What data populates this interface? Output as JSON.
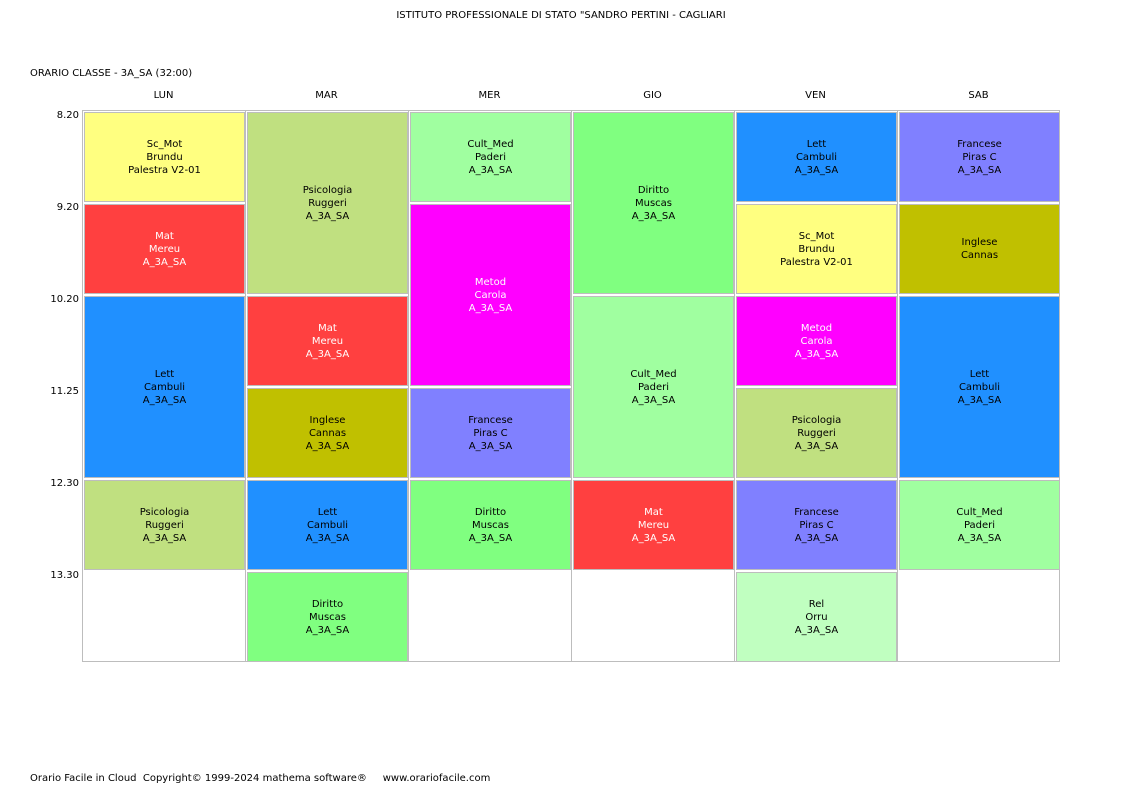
{
  "header": {
    "title": "ISTITUTO PROFESSIONALE DI STATO \"SANDRO PERTINI - CAGLIARI",
    "subtitle": "ORARIO CLASSE   -   3A_SA  (32:00)"
  },
  "days": [
    "LUN",
    "MAR",
    "MER",
    "GIO",
    "VEN",
    "SAB"
  ],
  "times": [
    "8.20",
    "9.20",
    "10.20",
    "11.25",
    "12.30",
    "13.30"
  ],
  "colors": {
    "yellow": "#ffff80",
    "red": "#ff4040",
    "blue": "#2090ff",
    "olive_light": "#c0e080",
    "mint": "#a0ffa0",
    "magenta": "#ff00ff",
    "purple": "#8080ff",
    "green": "#80ff80",
    "olive": "#c0c000",
    "pale_green": "#c0ffc0",
    "grid_line": "#bdbdbd"
  },
  "cells": [
    {
      "day": 0,
      "start": 0,
      "span": 1,
      "color": "#ffff80",
      "text_color": "#000000",
      "lines": [
        "Sc_Mot",
        "Brundu",
        "Palestra V2-01"
      ]
    },
    {
      "day": 0,
      "start": 1,
      "span": 1,
      "color": "#ff4040",
      "text_color": "#ffffff",
      "lines": [
        "Mat",
        "Mereu",
        "A_3A_SA"
      ]
    },
    {
      "day": 0,
      "start": 2,
      "span": 2,
      "color": "#2090ff",
      "text_color": "#000000",
      "lines": [
        "Lett",
        "Cambuli",
        "A_3A_SA"
      ]
    },
    {
      "day": 0,
      "start": 4,
      "span": 1,
      "color": "#c0e080",
      "text_color": "#000000",
      "lines": [
        "Psicologia",
        "Ruggeri",
        "A_3A_SA"
      ]
    },
    {
      "day": 1,
      "start": 0,
      "span": 2,
      "color": "#c0e080",
      "text_color": "#000000",
      "lines": [
        "Psicologia",
        "Ruggeri",
        "A_3A_SA"
      ]
    },
    {
      "day": 1,
      "start": 2,
      "span": 1,
      "color": "#ff4040",
      "text_color": "#ffffff",
      "lines": [
        "Mat",
        "Mereu",
        "A_3A_SA"
      ]
    },
    {
      "day": 1,
      "start": 3,
      "span": 1,
      "color": "#c0c000",
      "text_color": "#000000",
      "lines": [
        "Inglese",
        "Cannas",
        "A_3A_SA"
      ]
    },
    {
      "day": 1,
      "start": 4,
      "span": 1,
      "color": "#2090ff",
      "text_color": "#000000",
      "lines": [
        "Lett",
        "Cambuli",
        "A_3A_SA"
      ]
    },
    {
      "day": 1,
      "start": 5,
      "span": 1,
      "color": "#80ff80",
      "text_color": "#000000",
      "lines": [
        "Diritto",
        "Muscas",
        "A_3A_SA"
      ]
    },
    {
      "day": 2,
      "start": 0,
      "span": 1,
      "color": "#a0ffa0",
      "text_color": "#000000",
      "lines": [
        "Cult_Med",
        "Paderi",
        "A_3A_SA"
      ]
    },
    {
      "day": 2,
      "start": 1,
      "span": 2,
      "color": "#ff00ff",
      "text_color": "#ffffff",
      "lines": [
        "Metod",
        "Carola",
        "A_3A_SA"
      ]
    },
    {
      "day": 2,
      "start": 3,
      "span": 1,
      "color": "#8080ff",
      "text_color": "#000000",
      "lines": [
        "Francese",
        "Piras C",
        "A_3A_SA"
      ]
    },
    {
      "day": 2,
      "start": 4,
      "span": 1,
      "color": "#80ff80",
      "text_color": "#000000",
      "lines": [
        "Diritto",
        "Muscas",
        "A_3A_SA"
      ]
    },
    {
      "day": 3,
      "start": 0,
      "span": 2,
      "color": "#80ff80",
      "text_color": "#000000",
      "lines": [
        "Diritto",
        "Muscas",
        "A_3A_SA"
      ]
    },
    {
      "day": 3,
      "start": 2,
      "span": 2,
      "color": "#a0ffa0",
      "text_color": "#000000",
      "lines": [
        "Cult_Med",
        "Paderi",
        "A_3A_SA"
      ]
    },
    {
      "day": 3,
      "start": 4,
      "span": 1,
      "color": "#ff4040",
      "text_color": "#ffffff",
      "lines": [
        "Mat",
        "Mereu",
        "A_3A_SA"
      ]
    },
    {
      "day": 4,
      "start": 0,
      "span": 1,
      "color": "#2090ff",
      "text_color": "#000000",
      "lines": [
        "Lett",
        "Cambuli",
        "A_3A_SA"
      ]
    },
    {
      "day": 4,
      "start": 1,
      "span": 1,
      "color": "#ffff80",
      "text_color": "#000000",
      "lines": [
        "Sc_Mot",
        "Brundu",
        "Palestra V2-01"
      ]
    },
    {
      "day": 4,
      "start": 2,
      "span": 1,
      "color": "#ff00ff",
      "text_color": "#ffffff",
      "lines": [
        "Metod",
        "Carola",
        "A_3A_SA"
      ]
    },
    {
      "day": 4,
      "start": 3,
      "span": 1,
      "color": "#c0e080",
      "text_color": "#000000",
      "lines": [
        "Psicologia",
        "Ruggeri",
        "A_3A_SA"
      ]
    },
    {
      "day": 4,
      "start": 4,
      "span": 1,
      "color": "#8080ff",
      "text_color": "#000000",
      "lines": [
        "Francese",
        "Piras C",
        "A_3A_SA"
      ]
    },
    {
      "day": 4,
      "start": 5,
      "span": 1,
      "color": "#c0ffc0",
      "text_color": "#000000",
      "lines": [
        "Rel",
        "Orru",
        "A_3A_SA"
      ]
    },
    {
      "day": 5,
      "start": 0,
      "span": 1,
      "color": "#8080ff",
      "text_color": "#000000",
      "lines": [
        "Francese",
        "Piras C",
        "A_3A_SA"
      ]
    },
    {
      "day": 5,
      "start": 1,
      "span": 1,
      "color": "#c0c000",
      "text_color": "#000000",
      "lines": [
        "Inglese",
        "Cannas"
      ]
    },
    {
      "day": 5,
      "start": 2,
      "span": 2,
      "color": "#2090ff",
      "text_color": "#000000",
      "lines": [
        "Lett",
        "Cambuli",
        "A_3A_SA"
      ]
    },
    {
      "day": 5,
      "start": 4,
      "span": 1,
      "color": "#a0ffa0",
      "text_color": "#000000",
      "lines": [
        "Cult_Med",
        "Paderi",
        "A_3A_SA"
      ]
    }
  ],
  "footer": {
    "text": "Orario Facile in Cloud  Copyright© 1999-2024 mathema software®     www.orariofacile.com"
  }
}
